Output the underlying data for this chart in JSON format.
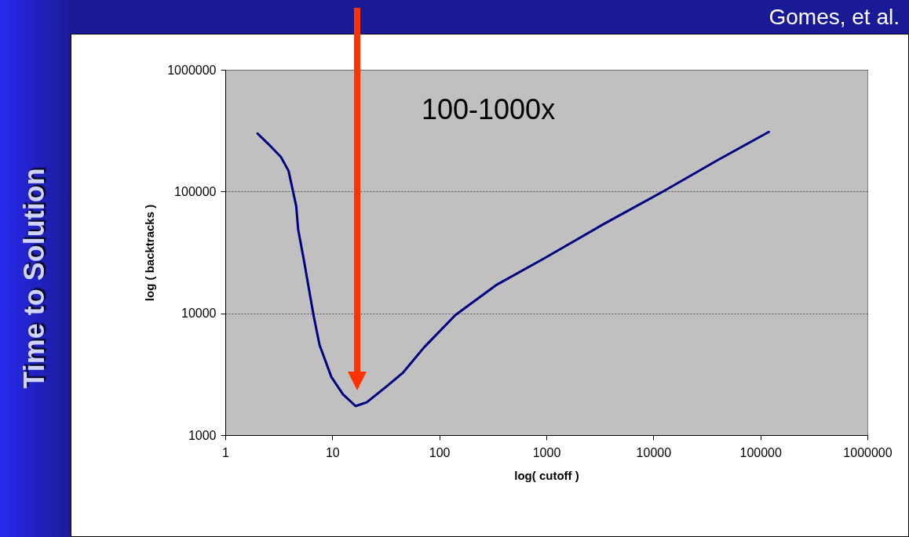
{
  "chart_data": {
    "type": "line",
    "xlabel": "log( cutoff )",
    "ylabel": "log ( backtracks )",
    "x": [
      2,
      2.5,
      3.3,
      3.9,
      4.6,
      4.8,
      5.4,
      6.2,
      6.7,
      7.6,
      9.8,
      12.6,
      16.5,
      21,
      32,
      46,
      72,
      141,
      158,
      345,
      950,
      3300,
      12800,
      39000,
      120000
    ],
    "series": [
      {
        "color": "#000080",
        "values": [
          300000,
          248000,
          193000,
          148000,
          76000,
          48600,
          28000,
          14000,
          9500,
          5500,
          3000,
          2160,
          1730,
          1860,
          2500,
          3270,
          5250,
          9650,
          10400,
          17200,
          28200,
          53000,
          102000,
          179000,
          309000
        ]
      }
    ],
    "xlim": [
      1,
      1000000
    ],
    "xticks": [
      1,
      10,
      100,
      1000,
      10000,
      100000,
      1000000
    ],
    "ylim": [
      1000,
      1000000
    ],
    "yticks": [
      1000,
      10000,
      100000,
      1000000
    ],
    "log": "xy",
    "grid": "y",
    "line_style": "solid",
    "annotations": [
      "100-1000x",
      "Gomes, et al.",
      "Time to Solution"
    ]
  }
}
